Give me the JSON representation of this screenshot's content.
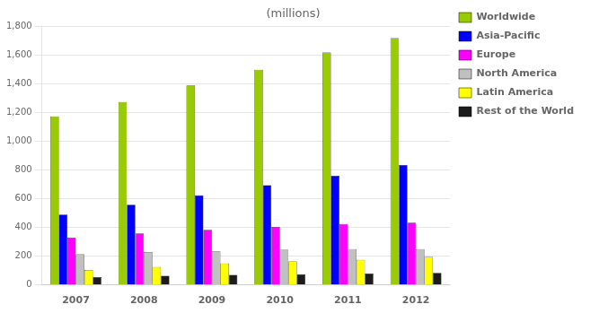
{
  "chart_data": {
    "type": "bar",
    "title": "(millions)",
    "categories": [
      "2007",
      "2008",
      "2009",
      "2010",
      "2011",
      "2012"
    ],
    "series": [
      {
        "name": "Worldwide",
        "color": "#99CC00",
        "values": [
          1175,
          1275,
          1390,
          1500,
          1620,
          1720
        ]
      },
      {
        "name": "Asia-Pacific",
        "color": "#0000FF",
        "values": [
          490,
          560,
          625,
          695,
          760,
          835
        ]
      },
      {
        "name": "Europe",
        "color": "#FF00FF",
        "values": [
          330,
          360,
          385,
          405,
          425,
          435
        ]
      },
      {
        "name": "North America",
        "color": "#C0C0C0",
        "values": [
          215,
          230,
          235,
          245,
          250,
          250
        ]
      },
      {
        "name": "Latin America",
        "color": "#FFFF00",
        "values": [
          105,
          125,
          150,
          165,
          175,
          195
        ]
      },
      {
        "name": "Rest of the World",
        "color": "#1C1C1C",
        "values": [
          55,
          65,
          70,
          75,
          80,
          85
        ]
      }
    ],
    "ylim": [
      0,
      1800
    ],
    "yticks": [
      0,
      200,
      400,
      600,
      800,
      {
        "value": 1000,
        "label": "1,000"
      },
      {
        "value": 1200,
        "label": "1,200"
      },
      {
        "value": 1400,
        "label": "1,400"
      },
      {
        "value": 1600,
        "label": "1,600"
      },
      {
        "value": 1800,
        "label": "1,800"
      }
    ],
    "grid": true,
    "legend": "right"
  }
}
